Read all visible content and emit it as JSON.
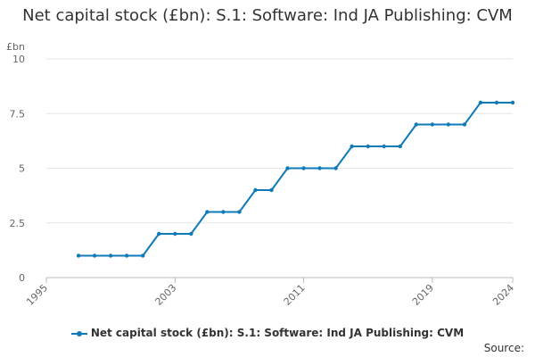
{
  "chart_data": {
    "type": "line",
    "title": "Net capital stock (£bn): S.1: Software: Ind JA Publishing: CVM",
    "ylabel": "£bn",
    "xlabel": "",
    "x_tick_labels": [
      "1995",
      "2003",
      "2011",
      "2019",
      "2024"
    ],
    "y_tick_labels": [
      "0",
      "2.5",
      "5",
      "7.5",
      "10"
    ],
    "ylim": [
      0,
      10
    ],
    "xlim": [
      1995,
      2024
    ],
    "grid": true,
    "legend_position": "bottom",
    "series": [
      {
        "name": "Net capital stock (£bn): S.1: Software: Ind JA Publishing: CVM",
        "color": "#0f7ab8",
        "x": [
          1997,
          1998,
          1999,
          2000,
          2001,
          2002,
          2003,
          2004,
          2005,
          2006,
          2007,
          2008,
          2009,
          2010,
          2011,
          2012,
          2013,
          2014,
          2015,
          2016,
          2017,
          2018,
          2019,
          2020,
          2021,
          2022,
          2023,
          2024
        ],
        "values": [
          1,
          1,
          1,
          1,
          1,
          2,
          2,
          2,
          3,
          3,
          3,
          4,
          4,
          5,
          5,
          5,
          5,
          6,
          6,
          6,
          6,
          7,
          7,
          7,
          7,
          8,
          8,
          8
        ]
      }
    ]
  },
  "legend": {
    "label": "Net capital stock (£bn): S.1: Software: Ind JA Publishing: CVM"
  },
  "source": {
    "label": "Source:"
  }
}
